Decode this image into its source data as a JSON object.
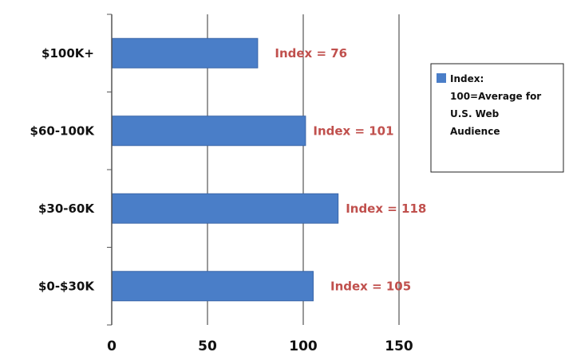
{
  "chart_data": {
    "type": "bar",
    "orientation": "horizontal",
    "categories": [
      "$100K+",
      "$60-100K",
      "$30-60K",
      "$0-$30K"
    ],
    "values": [
      76,
      101,
      118,
      105
    ],
    "data_labels": [
      "Index = 76",
      "Index = 101",
      "Index = 118",
      "Index = 105"
    ],
    "series": [
      {
        "name": "Index: 100=Average for U.S. Web Audience",
        "values": [
          76,
          101,
          118,
          105
        ]
      }
    ],
    "legend_lines": [
      "Index:",
      "100=Average for",
      "U.S. Web",
      "Audience"
    ],
    "xticks": [
      0,
      50,
      100,
      150
    ],
    "xlim": [
      0,
      150
    ],
    "title": "",
    "xlabel": "",
    "ylabel": "",
    "grid": "vertical gridlines at 50, 100, 150",
    "legend_position": "right",
    "colors": {
      "bar": "#4a7ec8",
      "bar_edge": "#3a66a8",
      "data_label": "#c0504d",
      "axis": "#555555",
      "grid": "#333333"
    }
  }
}
